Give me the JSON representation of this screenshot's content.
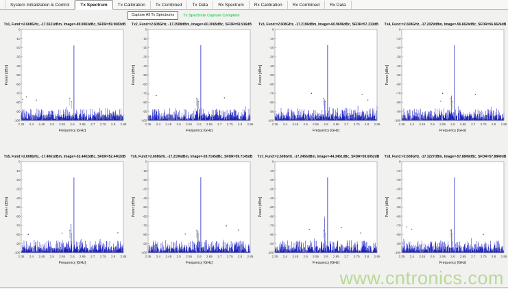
{
  "tabs": [
    {
      "label": "System Initialization & Control",
      "selected": false
    },
    {
      "label": "Tx Spectrum",
      "selected": true
    },
    {
      "label": "Tx Calibration",
      "selected": false
    },
    {
      "label": "Tx Combined",
      "selected": false
    },
    {
      "label": "Tx Data",
      "selected": false
    },
    {
      "label": "Rx Spectrum",
      "selected": false
    },
    {
      "label": "Rx Calibration",
      "selected": false
    },
    {
      "label": "Rx Combined",
      "selected": false
    },
    {
      "label": "Rx Data",
      "selected": false
    }
  ],
  "toolbar": {
    "capture_button_label": "Capture All Tx Spectrums",
    "status_text": "Tx Spectrum Capture Complete",
    "status_color": "#35d158"
  },
  "watermark": {
    "text": "www.cntronics.com",
    "color": "#b7d793"
  },
  "chart_data": {
    "type": "line",
    "layout": "2 rows x 4 columns of power spectrum plots",
    "xlabel": "Frequency [GHz]",
    "ylabel": "Power [dBm]",
    "xlim": [
      2.35,
      2.85
    ],
    "ylim": [
      -100,
      0
    ],
    "xticks": [
      2.35,
      2.4,
      2.45,
      2.5,
      2.55,
      2.6,
      2.65,
      2.7,
      2.75,
      2.8,
      2.85
    ],
    "xtick_labels": [
      "2.35",
      "2.4",
      "2.45",
      "2.5",
      "2.55",
      "2.6",
      "2.65",
      "2.7",
      "2.75",
      "2.8",
      "2.85"
    ],
    "yticks": [
      0,
      -10,
      -20,
      -30,
      -40,
      -50,
      -60,
      -70,
      -80,
      -90,
      -100
    ],
    "ytick_labels": [
      "0",
      "-10",
      "-20",
      "-30",
      "-40",
      "-50",
      "-60",
      "-70",
      "-80",
      "-90",
      "-100"
    ],
    "grid": false,
    "noise_floor_dbm": -92,
    "line_color": "#2a2fc9",
    "plots": [
      {
        "name": "Tx1",
        "title": "Tx1, Fund:=2.608GHz, -17.5531dBm, Image=-89.9083dBc, SFDR=59.9083dB",
        "fund_ghz": 2.608,
        "fund_dbm": -17.5531,
        "image_dbc": -89.9083,
        "sfdr_db": 59.9083
      },
      {
        "name": "Tx2",
        "title": "Tx2, Fund:=2.608GHz, -17.2508dBm, Image=-60.3065dBc, SFDR=59.916dB",
        "fund_ghz": 2.608,
        "fund_dbm": -17.2508,
        "image_dbc": -60.3065,
        "sfdr_db": 59.916
      },
      {
        "name": "Tx3",
        "title": "Tx3, Fund:=2.608GHz, -17.2196dBm, Image=-60.9696dBc, SFDR=57.313dB",
        "fund_ghz": 2.608,
        "fund_dbm": -17.2196,
        "image_dbc": -60.9696,
        "sfdr_db": 57.313
      },
      {
        "name": "Tx4",
        "title": "Tx4, Fund:=2.608GHz, -17.2029dBm, Image=-56.6624dBc, SFDR=56.6624dB",
        "fund_ghz": 2.608,
        "fund_dbm": -17.2029,
        "image_dbc": -56.6624,
        "sfdr_db": 56.6624
      },
      {
        "name": "Tx5",
        "title": "Tx5, Fund:=2.608GHz, -17.4061dBm, Image=-52.4402dBc, SFDR=52.4402dB",
        "fund_ghz": 2.608,
        "fund_dbm": -17.4061,
        "image_dbc": -52.4402,
        "sfdr_db": 52.4402
      },
      {
        "name": "Tx6",
        "title": "Tx6, Fund:=2.608GHz, -17.2196dBm, Image=-59.7145dBc, SFDR=59.7145dB",
        "fund_ghz": 2.608,
        "fund_dbm": -17.2196,
        "image_dbc": -59.7145,
        "sfdr_db": 59.7145
      },
      {
        "name": "Tx7",
        "title": "Tx7, Fund:=2.608GHz, -17.2456dBm, Image=-44.3451dBc, SFDR=59.6052dB",
        "fund_ghz": 2.608,
        "fund_dbm": -17.2456,
        "image_dbc": -44.3451,
        "sfdr_db": 59.6052
      },
      {
        "name": "Tx8",
        "title": "Tx8, Fund:=2.608GHz, -17.3227dBm, Image=-57.8849dBc, SFDR=57.8849dB",
        "fund_ghz": 2.608,
        "fund_dbm": -17.3227,
        "image_dbc": -57.8849,
        "sfdr_db": 57.8849
      }
    ]
  }
}
